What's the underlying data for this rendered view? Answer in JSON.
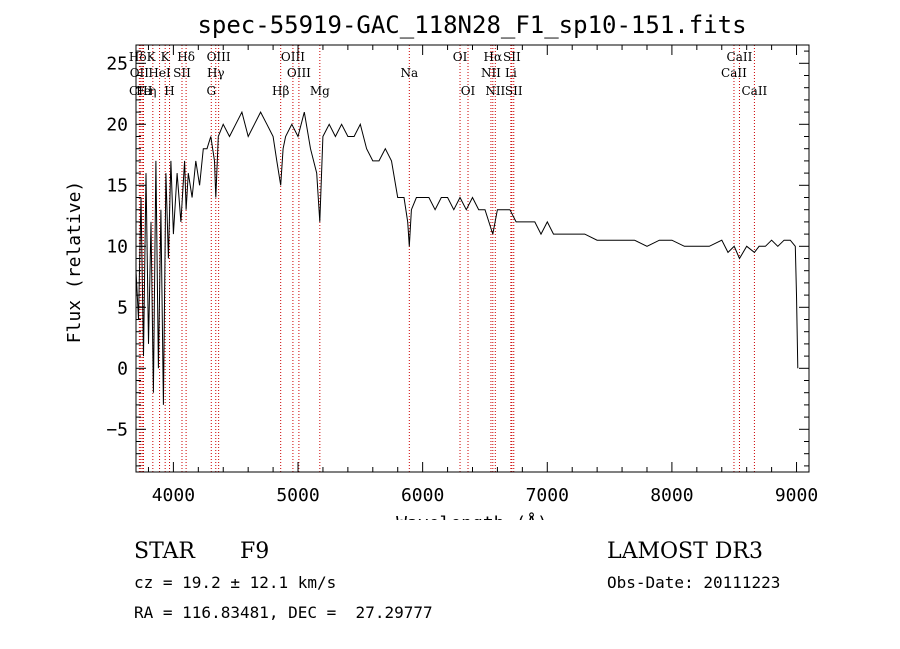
{
  "chart_data": {
    "type": "line",
    "title": "spec-55919-GAC_118N28_F1_sp10-151.fits",
    "xlabel": "Wavelength (Å)",
    "ylabel": "Flux (relative)",
    "xlim": [
      3700,
      9100
    ],
    "ylim": [
      -8.5,
      26.5
    ],
    "xticks": [
      4000,
      5000,
      6000,
      7000,
      8000,
      9000
    ],
    "xtick_labels": [
      "4000",
      "5000",
      "6000",
      "7000",
      "8000",
      "9000"
    ],
    "yticks": [
      -5,
      0,
      5,
      10,
      15,
      20,
      25
    ],
    "ytick_labels": [
      "−5",
      "0",
      "5",
      "10",
      "15",
      "20",
      "25"
    ],
    "grid": false,
    "line_color": "#000000",
    "marker_color": "#cc0000",
    "series": [
      {
        "x": [
          3700,
          3720,
          3740,
          3760,
          3780,
          3800,
          3820,
          3840,
          3860,
          3880,
          3900,
          3920,
          3940,
          3960,
          3980,
          4000,
          4030,
          4060,
          4090,
          4102,
          4120,
          4150,
          4180,
          4210,
          4240,
          4270,
          4300,
          4330,
          4340,
          4360,
          4400,
          4450,
          4500,
          4550,
          4600,
          4650,
          4700,
          4750,
          4800,
          4830,
          4861,
          4880,
          4900,
          4950,
          5000,
          5050,
          5100,
          5150,
          5175,
          5200,
          5250,
          5300,
          5350,
          5400,
          5450,
          5500,
          5550,
          5600,
          5650,
          5700,
          5750,
          5800,
          5850,
          5880,
          5893,
          5910,
          5950,
          6000,
          6050,
          6100,
          6150,
          6200,
          6250,
          6300,
          6350,
          6400,
          6450,
          6500,
          6563,
          6600,
          6650,
          6700,
          6750,
          6800,
          6850,
          6900,
          6950,
          7000,
          7050,
          7100,
          7150,
          7200,
          7300,
          7400,
          7500,
          7600,
          7700,
          7800,
          7900,
          8000,
          8100,
          8200,
          8300,
          8400,
          8450,
          8500,
          8542,
          8600,
          8662,
          8700,
          8750,
          8800,
          8850,
          8900,
          8950,
          8990,
          9000,
          9010
        ],
        "y": [
          8,
          4,
          14,
          1,
          16,
          2,
          12,
          -2,
          17,
          0,
          13,
          -3,
          16,
          9,
          17,
          11,
          16,
          12,
          17,
          13,
          16,
          14,
          17,
          15,
          18,
          18,
          19,
          17,
          14,
          19,
          20,
          19,
          20,
          21,
          19,
          20,
          21,
          20,
          19,
          17,
          15,
          18,
          19,
          20,
          19,
          21,
          18,
          16,
          12,
          19,
          20,
          19,
          20,
          19,
          19,
          20,
          18,
          17,
          17,
          18,
          17,
          14,
          14,
          12,
          10,
          13,
          14,
          14,
          14,
          13,
          14,
          14,
          13,
          14,
          13,
          14,
          13,
          13,
          11,
          13,
          13,
          13,
          12,
          12,
          12,
          12,
          11,
          12,
          11,
          11,
          11,
          11,
          11,
          10.5,
          10.5,
          10.5,
          10.5,
          10,
          10.5,
          10.5,
          10,
          10,
          10,
          10.5,
          9.5,
          10,
          9,
          10,
          9.5,
          10,
          10,
          10.5,
          10,
          10.5,
          10.5,
          10,
          6,
          0
        ]
      }
    ],
    "lines": [
      {
        "label": "HδK",
        "x": 3750,
        "row": 1
      },
      {
        "label": "OII",
        "x": 3727,
        "row": 2
      },
      {
        "label": "CIII",
        "x": 3738,
        "row": 3
      },
      {
        "label": "Fe",
        "x": 3760,
        "row": 3
      },
      {
        "label": "K",
        "x": 3934,
        "row": 1
      },
      {
        "label": "HeI",
        "x": 3889,
        "row": 2
      },
      {
        "label": "η",
        "x": 3835,
        "row": 3
      },
      {
        "label": "H",
        "x": 3969,
        "row": 3
      },
      {
        "label": "SII",
        "x": 4069,
        "row": 2
      },
      {
        "label": "Hδ",
        "x": 4102,
        "row": 1
      },
      {
        "label": "OIII",
        "x": 4363,
        "row": 1
      },
      {
        "label": "Hγ",
        "x": 4340,
        "row": 2
      },
      {
        "label": "G",
        "x": 4304,
        "row": 3
      },
      {
        "label": "Hβ",
        "x": 4861,
        "row": 3
      },
      {
        "label": "OIII",
        "x": 4959,
        "row": 1
      },
      {
        "label": "OIII",
        "x": 5007,
        "row": 2
      },
      {
        "label": "Mg",
        "x": 5175,
        "row": 3
      },
      {
        "label": "Na",
        "x": 5893,
        "row": 2
      },
      {
        "label": "OI",
        "x": 6300,
        "row": 1
      },
      {
        "label": "OI",
        "x": 6364,
        "row": 3
      },
      {
        "label": "Hα",
        "x": 6563,
        "row": 1
      },
      {
        "label": "NII",
        "x": 6548,
        "row": 2
      },
      {
        "label": "NII",
        "x": 6583,
        "row": 3
      },
      {
        "label": "SII",
        "x": 6716,
        "row": 1
      },
      {
        "label": "Li",
        "x": 6708,
        "row": 2
      },
      {
        "label": "SII",
        "x": 6731,
        "row": 3
      },
      {
        "label": "CaII",
        "x": 8542,
        "row": 1
      },
      {
        "label": "CaII",
        "x": 8498,
        "row": 2
      },
      {
        "label": "CaII",
        "x": 8662,
        "row": 3
      }
    ]
  },
  "info": {
    "object_class": "STAR",
    "subclass": "F9",
    "survey": "LAMOST DR3",
    "redshift": "cz = 19.2 ± 12.1 km/s",
    "obs_date": "Obs-Date: 20111223",
    "coords": "RA = 116.83481, DEC =  27.29777"
  }
}
